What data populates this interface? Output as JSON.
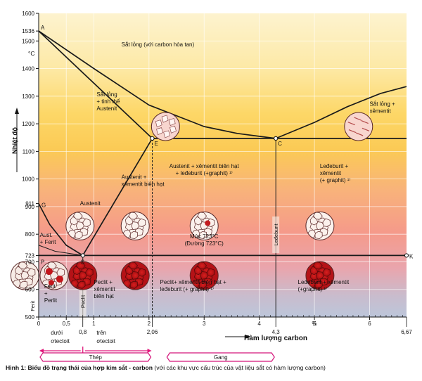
{
  "chart_data": {
    "type": "phase-diagram",
    "title": "",
    "ylabel": "Nhiệt độ",
    "yunit": "°C",
    "xlabel": "Hàm lượng carbon",
    "xunit": "%",
    "ylim": [
      500,
      1600
    ],
    "xlim": [
      0,
      6.67
    ],
    "y_ticks": [
      500,
      600,
      700,
      800,
      900,
      1000,
      1100,
      1200,
      1300,
      1400,
      1500,
      1600
    ],
    "y_extra_ticks": [
      {
        "value": 1536,
        "label": "1536"
      },
      {
        "value": 911,
        "label": "911"
      },
      {
        "value": 723,
        "label": "723"
      }
    ],
    "x_ticks": [
      {
        "value": 0,
        "label": "0"
      },
      {
        "value": 0.5,
        "label": "0,5"
      },
      {
        "value": 1,
        "label": "1"
      },
      {
        "value": 2,
        "label": "2"
      },
      {
        "value": 3,
        "label": "3"
      },
      {
        "value": 4,
        "label": "4"
      },
      {
        "value": 5,
        "label": "5"
      },
      {
        "value": 6,
        "label": "6"
      }
    ],
    "x_extra_ticks": [
      {
        "value": 0.8,
        "label": "0,8"
      },
      {
        "value": 2.06,
        "label": "2,06"
      },
      {
        "value": 4.3,
        "label": "4,3"
      },
      {
        "value": 6.67,
        "label": "6,67"
      }
    ],
    "unit_marker": {
      "x": 5.0,
      "label": "%"
    },
    "points": [
      {
        "name": "A",
        "x": 0,
        "y": 1536
      },
      {
        "name": "E",
        "x": 2.06,
        "y": 1147
      },
      {
        "name": "C",
        "x": 4.3,
        "y": 1147
      },
      {
        "name": "G",
        "x": 0,
        "y": 911
      },
      {
        "name": "S",
        "x": 0.8,
        "y": 723
      },
      {
        "name": "P",
        "x": 0,
        "y": 723
      },
      {
        "name": "K",
        "x": 6.67,
        "y": 723
      }
    ],
    "lines": [
      {
        "name": "liquidus-AC",
        "points": [
          [
            0,
            1536
          ],
          [
            1,
            1400
          ],
          [
            2,
            1268
          ],
          [
            3,
            1190
          ],
          [
            3.6,
            1165
          ],
          [
            4.3,
            1147
          ]
        ]
      },
      {
        "name": "liquidus-CD",
        "points": [
          [
            4.3,
            1147
          ],
          [
            5,
            1205
          ],
          [
            5.6,
            1262
          ],
          [
            6.2,
            1310
          ],
          [
            6.67,
            1335
          ]
        ]
      },
      {
        "name": "solidus-AE",
        "points": [
          [
            0,
            1536
          ],
          [
            2.06,
            1147
          ]
        ]
      },
      {
        "name": "eutectic-EC",
        "points": [
          [
            2.06,
            1147
          ],
          [
            6.67,
            1147
          ]
        ]
      },
      {
        "name": "solvus-SE",
        "points": [
          [
            0.8,
            723
          ],
          [
            2.06,
            1147
          ]
        ]
      },
      {
        "name": "GS",
        "points": [
          [
            0,
            911
          ],
          [
            0.2,
            835
          ],
          [
            0.5,
            760
          ],
          [
            0.8,
            723
          ]
        ]
      },
      {
        "name": "PS-curve",
        "points": [
          [
            0,
            760
          ],
          [
            0.3,
            738
          ],
          [
            0.8,
            723
          ]
        ]
      },
      {
        "name": "eutectoid-PSK",
        "points": [
          [
            0,
            723
          ],
          [
            6.67,
            723
          ]
        ]
      }
    ],
    "vertical_lines": [
      {
        "x": 0.8,
        "from": 500,
        "to": 723,
        "label": "Peclit"
      },
      {
        "x": 2.06,
        "from": 500,
        "to": 1147,
        "label": ""
      },
      {
        "x": 4.3,
        "from": 500,
        "to": 1147,
        "label": "Leđeburit"
      }
    ],
    "regions": [
      {
        "x": 1.5,
        "y": 1480,
        "lines": [
          "Sắt lỏng (với carbon hòa tan)"
        ]
      },
      {
        "x": 1.05,
        "y": 1300,
        "lines": [
          "Sắt lỏng",
          "+ tinh thể",
          "Austenit"
        ]
      },
      {
        "x": 6.0,
        "y": 1265,
        "lines": [
          "Sắt lỏng +",
          "xêmentit"
        ]
      },
      {
        "x": 0.75,
        "y": 905,
        "lines": [
          "Austenit"
        ]
      },
      {
        "x": 1.5,
        "y": 1000,
        "lines": [
          "Austenit +",
          "xêmentit biên hạt"
        ]
      },
      {
        "x": 3.0,
        "y": 1040,
        "lines": [
          "Austenit + xêmentit biên hạt",
          "+ leđeburit (+graphit) ¹⁾"
        ]
      },
      {
        "x": 5.1,
        "y": 1040,
        "lines": [
          "Leđeburit +",
          "xêmentit",
          "(+ graphit) ¹⁾"
        ]
      },
      {
        "x": 0.02,
        "y": 790,
        "lines": [
          "Aust.",
          "+ Ferit"
        ]
      },
      {
        "x": 3.0,
        "y": 785,
        "lines": [
          "Mức 723°C",
          "(Đường 723°C)"
        ]
      },
      {
        "x": 0.1,
        "y": 605,
        "lines": [
          "Ferit",
          "+",
          "Perlit"
        ]
      },
      {
        "x": 1.0,
        "y": 620,
        "lines": [
          "Peclit +",
          "xêmentit",
          "biên hạt"
        ]
      },
      {
        "x": 2.2,
        "y": 620,
        "lines": [
          "Peclit+ xêmentit biên hạt +",
          "leđeburit (+ graphit) ¹⁾"
        ]
      },
      {
        "x": 4.7,
        "y": 620,
        "lines": [
          "Leđeburit + xêmentit",
          "(+graphit) ¹⁾"
        ]
      }
    ],
    "side_labels": {
      "ferit": "Ferit"
    },
    "below_labels": [
      {
        "lines": [
          "dưới",
          "ơtectoit"
        ]
      },
      {
        "lines": [
          "trên",
          "ơtectoit"
        ]
      }
    ],
    "categories": [
      {
        "label": "Thép",
        "from": 0,
        "to": 2.06
      },
      {
        "label": "Gang",
        "from": 2.3,
        "to": 4.3
      }
    ],
    "micrographs": [
      {
        "x": 2.3,
        "y": 1190,
        "type": "liquid-crystals"
      },
      {
        "x": 5.8,
        "y": 1190,
        "type": "liquid-cementite"
      },
      {
        "x": 0.75,
        "y": 830,
        "type": "austenite"
      },
      {
        "x": 1.75,
        "y": 830,
        "type": "austenite"
      },
      {
        "x": 3.0,
        "y": 830,
        "type": "austenite-ledeburite"
      },
      {
        "x": 5.1,
        "y": 830,
        "type": "ledeburite"
      },
      {
        "x": -0.25,
        "y": 650,
        "type": "ferrite"
      },
      {
        "x": 0.28,
        "y": 650,
        "type": "ferrite-pearlite"
      },
      {
        "x": 0.8,
        "y": 650,
        "type": "pearlite"
      },
      {
        "x": 1.75,
        "y": 650,
        "type": "pearlite"
      },
      {
        "x": 3.0,
        "y": 650,
        "type": "pearlite"
      },
      {
        "x": 5.1,
        "y": 650,
        "type": "pearlite"
      }
    ]
  },
  "caption": {
    "bold": "Hình 1: Biểu đồ trạng thái của hợp kim sắt - carbon",
    "normal": " (với các khu vực cấu trúc của vật liệu sắt có hàm lượng carbon)"
  }
}
